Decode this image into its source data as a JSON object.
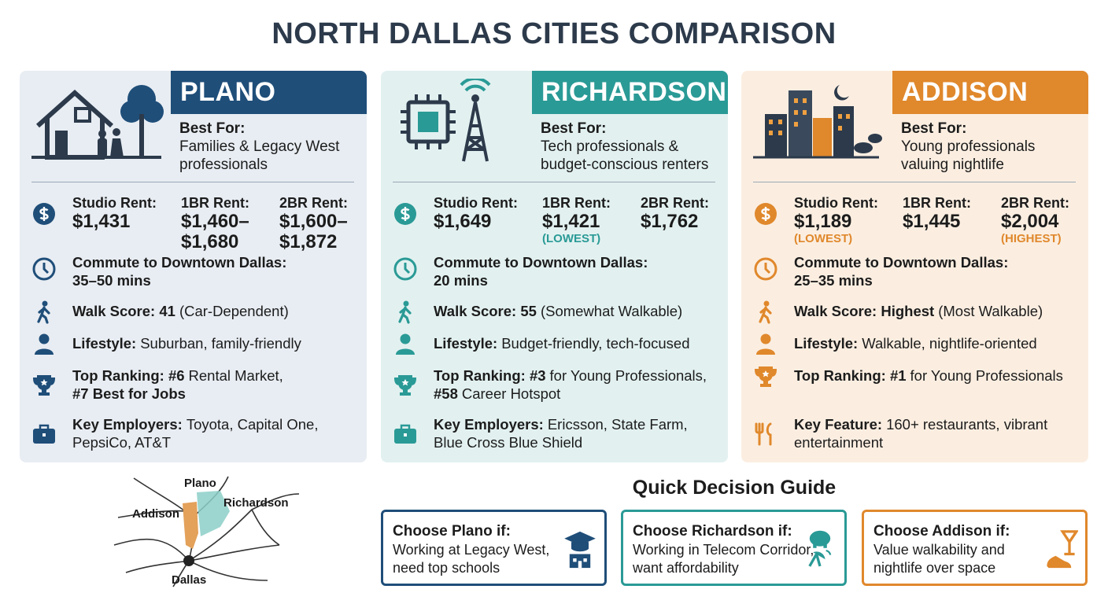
{
  "title": "NORTH DALLAS CITIES COMPARISON",
  "cities": [
    {
      "name": "PLANO",
      "color": "#1f4e79",
      "background": "#e8edf3",
      "best_for_label": "Best For:",
      "best_for": [
        "Families & Legacy West",
        "professionals"
      ],
      "rents": [
        {
          "label": "Studio Rent:",
          "value": "$1,431"
        },
        {
          "label": "1BR Rent:",
          "value": "$1,460–$1,680"
        },
        {
          "label": "2BR Rent:",
          "value": "$1,600–$1,872"
        }
      ],
      "commute_label": "Commute to Downtown Dallas:",
      "commute": "35–50 mins",
      "details": [
        [
          [
            {
              "text": "Walk Score: 41",
              "bold": true
            },
            {
              "text": "(Car-Dependent)"
            }
          ]
        ],
        [
          [
            {
              "text": "Lifestyle:",
              "bold": true
            },
            {
              "text": "Suburban, family-friendly"
            }
          ]
        ],
        [
          [
            {
              "text": "Top Ranking: #6",
              "bold": true
            },
            {
              "text": "Rental Market,"
            }
          ],
          [
            {
              "text": "#7 Best for Jobs",
              "bold": true
            }
          ]
        ],
        [
          [
            {
              "text": "Key Employers:",
              "bold": true
            },
            {
              "text": "Toyota, Capital One,"
            }
          ],
          [
            {
              "text": "PepsiCo, AT&T"
            }
          ]
        ]
      ]
    },
    {
      "name": "RICHARDSON",
      "color": "#2a9a96",
      "background": "#e2f1f0",
      "best_for_label": "Best For:",
      "best_for": [
        "Tech professionals &",
        "budget-conscious renters"
      ],
      "rents": [
        {
          "label": "Studio Rent:",
          "value": "$1,649"
        },
        {
          "label": "1BR Rent:",
          "value": "$1,421",
          "note": "(LOWEST)"
        },
        {
          "label": "2BR Rent:",
          "value": "$1,762"
        }
      ],
      "commute_label": "Commute to Downtown Dallas:",
      "commute": "20 mins",
      "details": [
        [
          [
            {
              "text": "Walk Score: 55",
              "bold": true
            },
            {
              "text": "(Somewhat Walkable)"
            }
          ]
        ],
        [
          [
            {
              "text": "Lifestyle:",
              "bold": true
            },
            {
              "text": "Budget-friendly, tech-focused"
            }
          ]
        ],
        [
          [
            {
              "text": "Top Ranking: #3",
              "bold": true
            },
            {
              "text": "for Young Professionals,"
            }
          ],
          [
            {
              "text": "#58",
              "bold": true
            },
            {
              "text": "Career Hotspot"
            }
          ]
        ],
        [
          [
            {
              "text": "Key Employers:",
              "bold": true
            },
            {
              "text": "Ericsson, State Farm,"
            }
          ],
          [
            {
              "text": "Blue Cross Blue Shield"
            }
          ]
        ]
      ]
    },
    {
      "name": "ADDISON",
      "color": "#e0882c",
      "background": "#fbeee1",
      "best_for_label": "Best For:",
      "best_for": [
        "Young professionals",
        "valuing nightlife"
      ],
      "rents": [
        {
          "label": "Studio Rent:",
          "value": "$1,189",
          "note": "(LOWEST)"
        },
        {
          "label": "1BR Rent:",
          "value": "$1,445"
        },
        {
          "label": "2BR Rent:",
          "value": "$2,004",
          "note": "(HIGHEST)"
        }
      ],
      "commute_label": "Commute to Downtown Dallas:",
      "commute": "25–35 mins",
      "details": [
        [
          [
            {
              "text": "Walk Score: Highest",
              "bold": true
            },
            {
              "text": "(Most Walkable)"
            }
          ]
        ],
        [
          [
            {
              "text": "Lifestyle:",
              "bold": true
            },
            {
              "text": "Walkable, nightlife-oriented"
            }
          ]
        ],
        [
          [
            {
              "text": "Top Ranking: #1",
              "bold": true
            },
            {
              "text": "for Young Professionals"
            }
          ]
        ],
        [
          [
            {
              "text": "Key Feature:",
              "bold": true
            },
            {
              "text": "160+ restaurants, vibrant"
            }
          ],
          [
            {
              "text": "entertainment"
            }
          ]
        ]
      ]
    }
  ],
  "map": {
    "labels": [
      "Plano",
      "Addison",
      "Richardson",
      "Dallas"
    ]
  },
  "guide": {
    "title": "Quick Decision Guide",
    "items": [
      {
        "title": "Choose Plano if:",
        "lines": [
          "Working at Legacy West,",
          "need top schools"
        ]
      },
      {
        "title": "Choose Richardson if:",
        "lines": [
          "Working in Telecom Corridor,",
          "want affordability"
        ]
      },
      {
        "title": "Choose Addison if:",
        "lines": [
          "Value walkability and",
          "nightlife over space"
        ]
      }
    ]
  }
}
